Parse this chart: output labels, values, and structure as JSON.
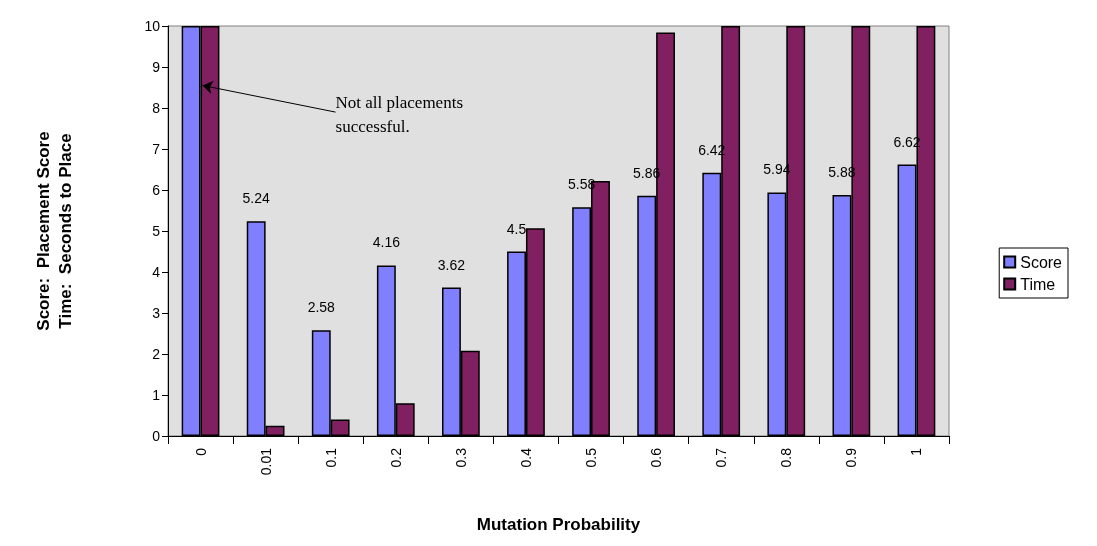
{
  "chart_data": {
    "type": "bar",
    "xlabel": "Mutation Probability",
    "ylabel": "Score:  Placement Score\nTime:  Seconds to Place",
    "categories": [
      "0",
      "0.01",
      "0.1",
      "0.2",
      "0.3",
      "0.4",
      "0.5",
      "0.6",
      "0.7",
      "0.8",
      "0.9",
      "1"
    ],
    "series": [
      {
        "name": "Score",
        "color": "#8080ff",
        "values": [
          10,
          5.24,
          2.58,
          4.16,
          3.62,
          4.5,
          5.58,
          5.86,
          6.42,
          5.94,
          5.88,
          6.62
        ],
        "value_labels": [
          null,
          "5.24",
          "2.58",
          "4.16",
          "3.62",
          "4.5",
          "5.58",
          "5.86",
          "6.42",
          "5.94",
          "5.88",
          "6.62"
        ]
      },
      {
        "name": "Time",
        "color": "#802060",
        "values": [
          10,
          0.25,
          0.4,
          0.8,
          2.08,
          5.07,
          6.22,
          9.84,
          10,
          10,
          10,
          10
        ]
      }
    ],
    "ylim": [
      0,
      10
    ],
    "yticks": [
      0,
      1,
      2,
      3,
      4,
      5,
      6,
      7,
      8,
      9,
      10
    ],
    "grid": false,
    "legend": "right",
    "annotations": [
      {
        "text": "Not all placements\nsuccessful.",
        "x": "0",
        "y": 8.55
      }
    ]
  }
}
